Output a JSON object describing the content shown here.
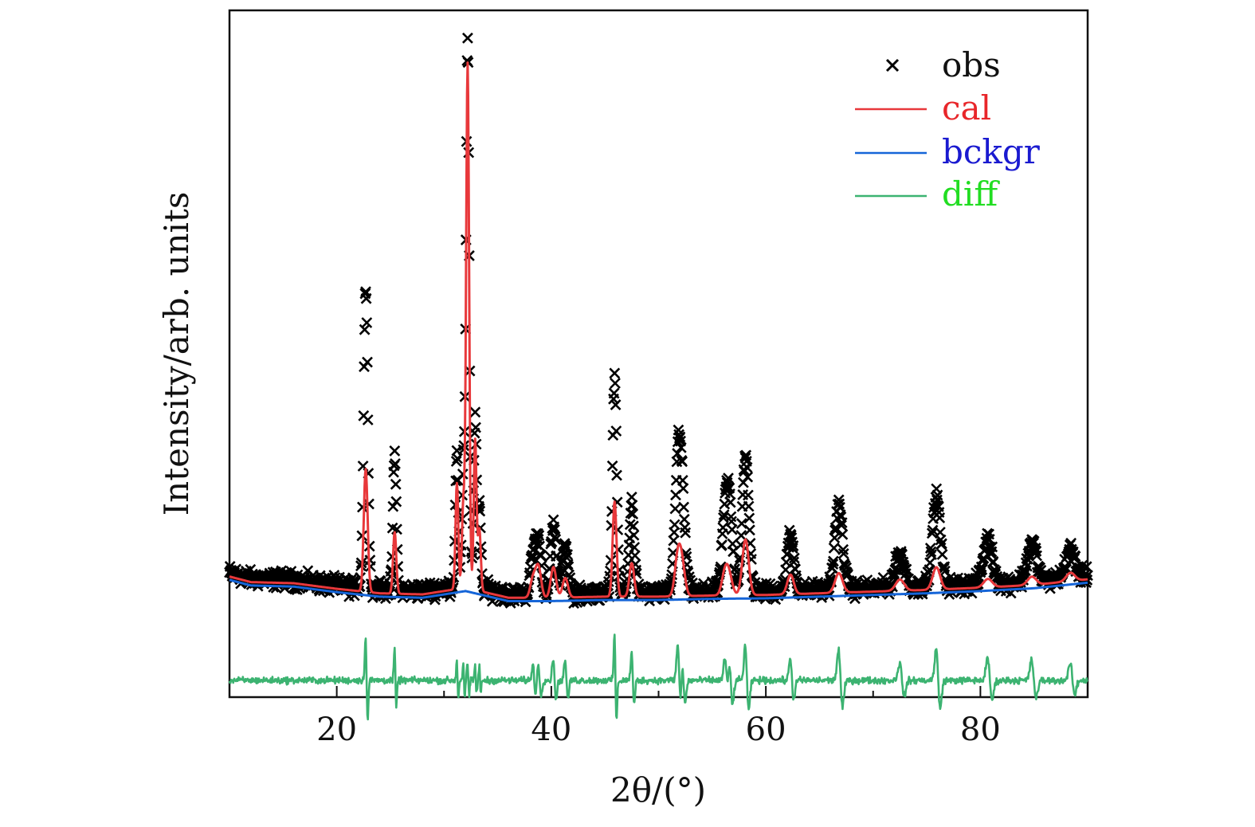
{
  "chart_data": {
    "type": "line",
    "title": "",
    "xlabel": "2θ/(°)",
    "ylabel": "Intensity/arb. units",
    "xlim": [
      10,
      90
    ],
    "ylim": [
      -18,
      105
    ],
    "x_ticks": [
      20,
      40,
      60,
      80
    ],
    "x_tick_labels": [
      "20",
      "40",
      "60",
      "80"
    ],
    "y_ticks_visible": false,
    "grid": false,
    "legend_position": "top-right",
    "legend": [
      {
        "label": "obs",
        "kind": "marker",
        "color": "#000000"
      },
      {
        "label": "cal",
        "kind": "line",
        "color": "#e8383b"
      },
      {
        "label": "bckgr",
        "kind": "line",
        "color": "#1565d8"
      },
      {
        "label": "diff",
        "kind": "line",
        "color": "#3cb371"
      }
    ],
    "legend_text_colors": {
      "obs": "#111111",
      "cal": "#e8262a",
      "bckgr": "#1a1ad0",
      "diff": "#22dd22"
    },
    "background": {
      "x": [
        10,
        12,
        16,
        20,
        24,
        28,
        32,
        36,
        40,
        45,
        50,
        55,
        60,
        65,
        70,
        75,
        80,
        85,
        90
      ],
      "y": [
        3.0,
        2.0,
        1.8,
        0.8,
        0.0,
        -0.2,
        1.0,
        -0.8,
        -0.8,
        -0.6,
        -0.6,
        -0.4,
        -0.3,
        0.0,
        0.3,
        0.6,
        1.0,
        1.5,
        2.5
      ]
    },
    "peaks": [
      {
        "pos": 22.7,
        "height": 22,
        "obs_max": 54,
        "width": 0.18
      },
      {
        "pos": 25.4,
        "height": 11,
        "obs_max": 24,
        "width": 0.15
      },
      {
        "pos": 31.2,
        "height": 19,
        "obs_max": 25,
        "width": 0.13
      },
      {
        "pos": 31.8,
        "height": 15,
        "obs_max": 20,
        "width": 0.13
      },
      {
        "pos": 32.2,
        "height": 94,
        "obs_max": 98.5,
        "width": 0.14
      },
      {
        "pos": 32.9,
        "height": 27,
        "obs_max": 30,
        "width": 0.13
      },
      {
        "pos": 33.3,
        "height": 11,
        "obs_max": 14,
        "width": 0.13
      },
      {
        "pos": 38.3,
        "height": 3.5,
        "obs_max": 6.5,
        "width": 0.25
      },
      {
        "pos": 38.8,
        "height": 5.5,
        "obs_max": 9,
        "width": 0.25
      },
      {
        "pos": 40.2,
        "height": 5.5,
        "obs_max": 12,
        "width": 0.25
      },
      {
        "pos": 41.3,
        "height": 3.5,
        "obs_max": 9,
        "width": 0.25
      },
      {
        "pos": 45.9,
        "height": 17,
        "obs_max": 39,
        "width": 0.18
      },
      {
        "pos": 47.5,
        "height": 6,
        "obs_max": 16,
        "width": 0.22
      },
      {
        "pos": 51.8,
        "height": 7,
        "obs_max": 21,
        "width": 0.28
      },
      {
        "pos": 52.2,
        "height": 5,
        "obs_max": 14,
        "width": 0.28
      },
      {
        "pos": 56.2,
        "height": 4,
        "obs_max": 11,
        "width": 0.3
      },
      {
        "pos": 56.6,
        "height": 3,
        "obs_max": 13,
        "width": 0.3
      },
      {
        "pos": 58.1,
        "height": 10,
        "obs_max": 24,
        "width": 0.3
      },
      {
        "pos": 62.3,
        "height": 3.5,
        "obs_max": 10,
        "width": 0.3
      },
      {
        "pos": 66.8,
        "height": 3.5,
        "obs_max": 15,
        "width": 0.35
      },
      {
        "pos": 72.5,
        "height": 2,
        "obs_max": 6,
        "width": 0.4
      },
      {
        "pos": 75.9,
        "height": 4,
        "obs_max": 16,
        "width": 0.35
      },
      {
        "pos": 80.7,
        "height": 1.5,
        "obs_max": 8,
        "width": 0.4
      },
      {
        "pos": 84.8,
        "height": 1.5,
        "obs_max": 7,
        "width": 0.4
      },
      {
        "pos": 88.4,
        "height": 1.5,
        "obs_max": 5,
        "width": 0.4
      }
    ],
    "obs_noise_amplitude": 2.2,
    "diff_offset": -15,
    "diff_noise_amplitude": 0.9,
    "sample_step_deg": 0.05
  }
}
